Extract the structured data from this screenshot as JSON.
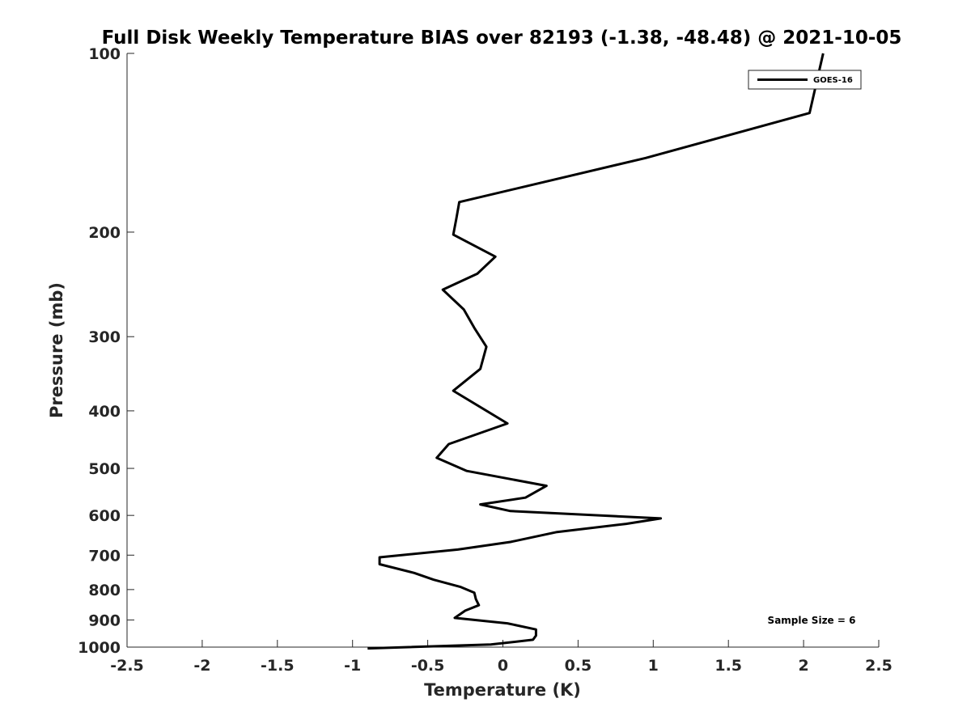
{
  "chart_data": {
    "type": "line",
    "title": "Full Disk Weekly Temperature BIAS over 82193 (-1.38, -48.48) @ 2021-10-05",
    "xlabel": "Temperature (K)",
    "ylabel": "Pressure (mb)",
    "xlim": [
      -2.5,
      2.5
    ],
    "ylim": [
      100,
      1000
    ],
    "y_scale": "log",
    "y_reversed": true,
    "grid": false,
    "legend_position": "top-right",
    "x_ticks": [
      "-2.5",
      "-2",
      "-1.5",
      "-1",
      "-0.5",
      "0",
      "0.5",
      "1",
      "1.5",
      "2",
      "2.5"
    ],
    "y_ticks": [
      "100",
      "200",
      "300",
      "400",
      "500",
      "600",
      "700",
      "800",
      "900",
      "1000"
    ],
    "annotation": "Sample Size = 6",
    "series": [
      {
        "name": "GOES-16",
        "color": "#000000",
        "x": [
          2.13,
          2.04,
          0.95,
          -0.29,
          -0.31,
          -0.33,
          -0.05,
          -0.17,
          -0.4,
          -0.26,
          -0.19,
          -0.11,
          -0.15,
          -0.33,
          0.03,
          -0.36,
          -0.44,
          -0.24,
          0.29,
          0.15,
          -0.15,
          0.05,
          1.05,
          0.82,
          0.36,
          0.05,
          -0.3,
          -0.82,
          -0.82,
          -0.59,
          -0.46,
          -0.28,
          -0.19,
          -0.18,
          -0.16,
          -0.25,
          -0.32,
          0.03,
          0.22,
          0.22,
          0.2,
          -0.08,
          -0.9
        ],
        "y": [
          100,
          126,
          150,
          178,
          190,
          202,
          220,
          235,
          250,
          270,
          290,
          312,
          340,
          370,
          420,
          455,
          480,
          505,
          535,
          560,
          575,
          590,
          607,
          620,
          640,
          665,
          685,
          706,
          725,
          750,
          770,
          792,
          810,
          830,
          850,
          868,
          893,
          912,
          934,
          956,
          972,
          990,
          1005
        ]
      }
    ]
  }
}
